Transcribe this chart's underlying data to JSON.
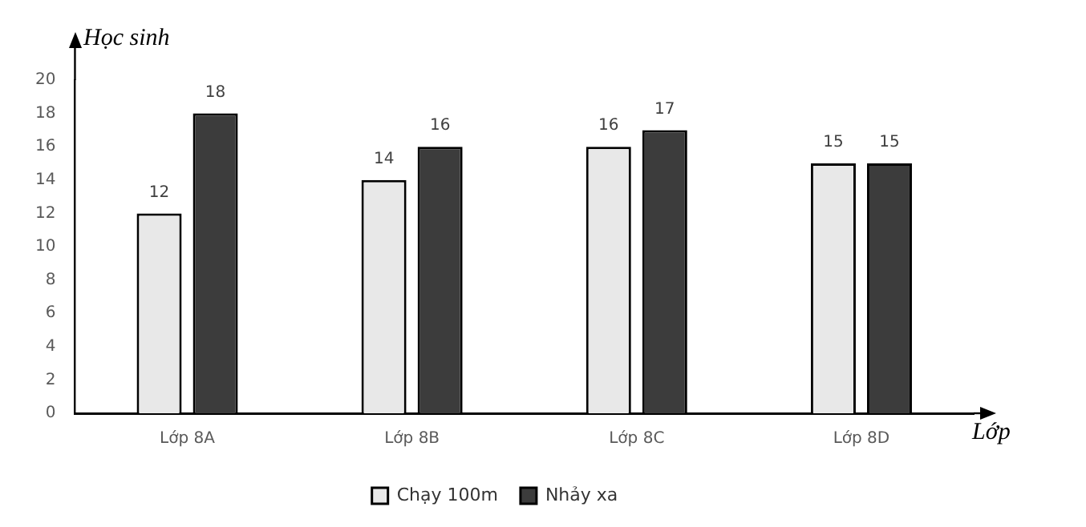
{
  "chart_data": {
    "type": "bar",
    "ylabel": "Học sinh",
    "xlabel": "Lớp",
    "categories": [
      "Lớp 8A",
      "Lớp 8B",
      "Lớp 8C",
      "Lớp 8D"
    ],
    "series": [
      {
        "name": "Chạy 100m",
        "color": "#e8e8e8",
        "values": [
          12,
          14,
          16,
          15
        ]
      },
      {
        "name": "Nhảy xa",
        "color": "#3c3c3c",
        "values": [
          18,
          16,
          17,
          15
        ]
      }
    ],
    "ylim": [
      0,
      20
    ],
    "yticks": [
      0,
      2,
      4,
      6,
      8,
      10,
      12,
      14,
      16,
      18,
      20
    ],
    "grid": false,
    "legend": "bottom",
    "data_labels": true
  }
}
